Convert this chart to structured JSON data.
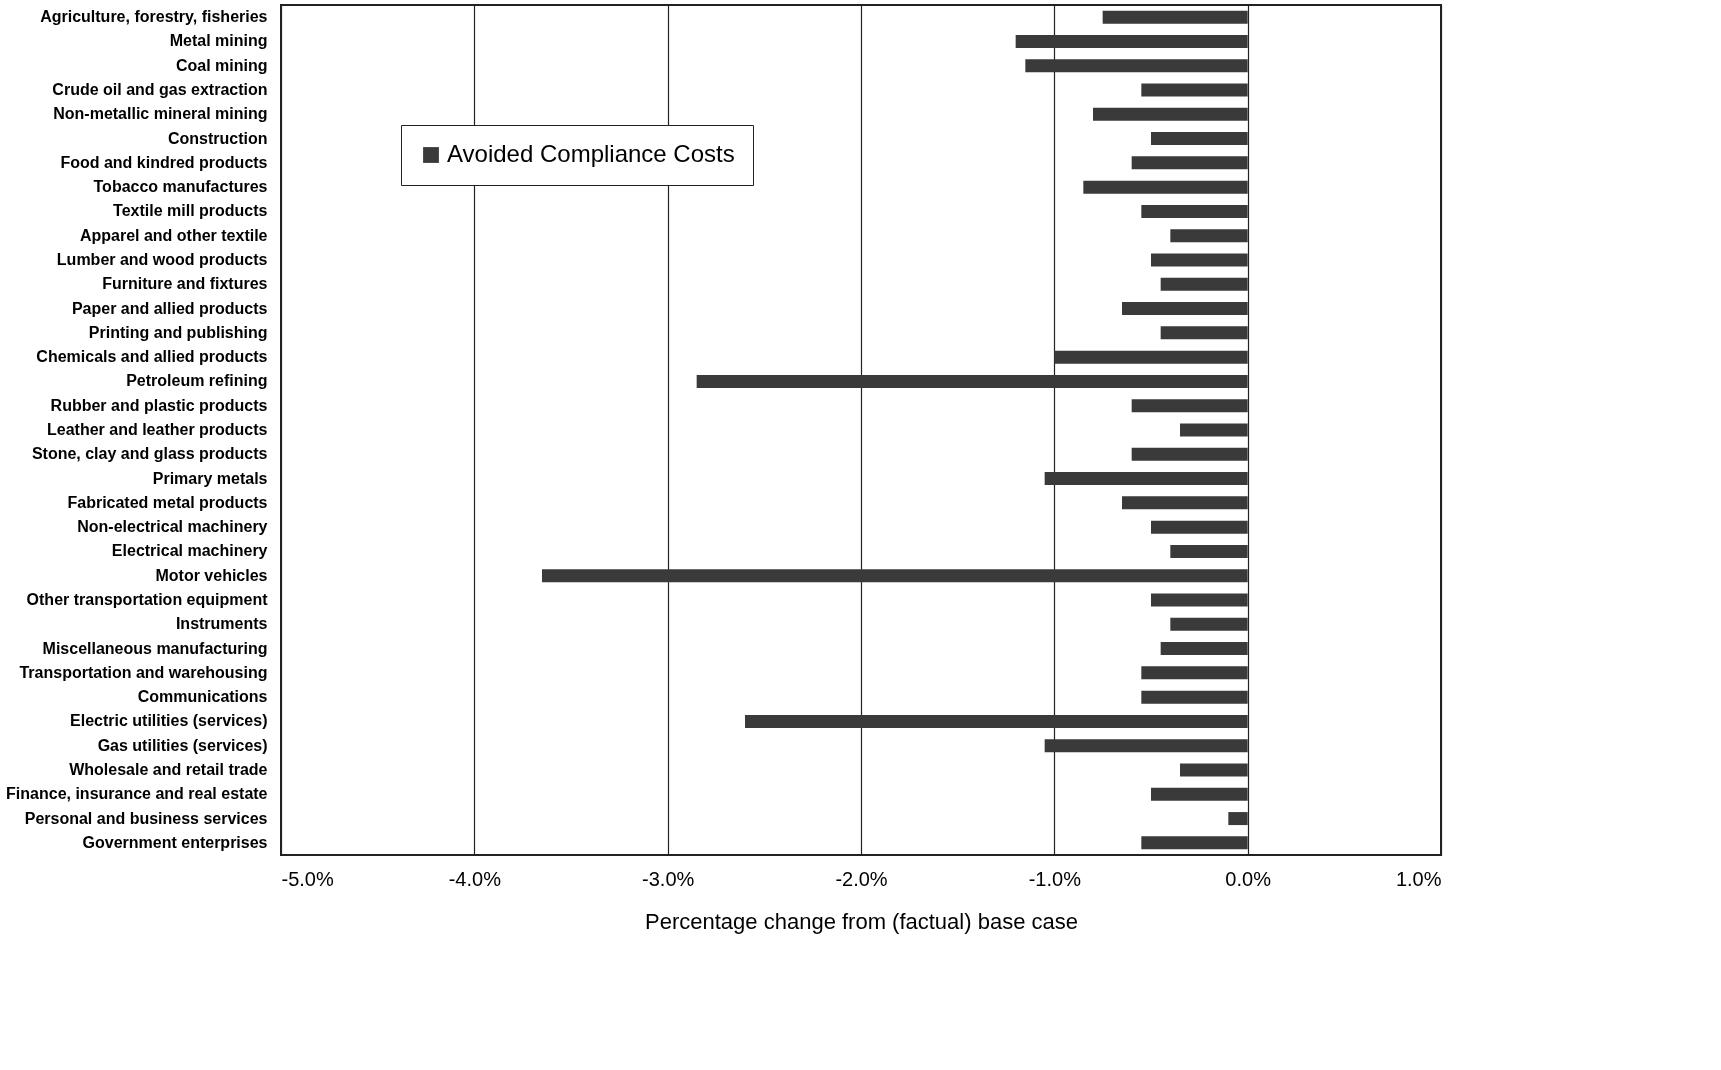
{
  "chart_data": {
    "type": "bar",
    "orientation": "horizontal",
    "xlabel": "Percentage change from (factual) base case",
    "categories": [
      "Agriculture, forestry, fisheries",
      "Metal mining",
      "Coal mining",
      "Crude oil and gas extraction",
      "Non-metallic mineral mining",
      "Construction",
      "Food and kindred products",
      "Tobacco manufactures",
      "Textile mill products",
      "Apparel and other textile",
      "Lumber and wood products",
      "Furniture and fixtures",
      "Paper and allied products",
      "Printing and publishing",
      "Chemicals and allied products",
      "Petroleum refining",
      "Rubber and plastic products",
      "Leather and leather products",
      "Stone, clay and glass products",
      "Primary metals",
      "Fabricated metal products",
      "Non-electrical machinery",
      "Electrical machinery",
      "Motor vehicles",
      "Other transportation equipment",
      "Instruments",
      "Miscellaneous manufacturing",
      "Transportation and warehousing",
      "Communications",
      "Electric utilities (services)",
      "Gas utilities (services)",
      "Wholesale and retail trade",
      "Finance, insurance and real estate",
      "Personal and business services",
      "Government enterprises"
    ],
    "series": [
      {
        "name": "Avoided Compliance Costs",
        "color": "#3a3a3a",
        "values": [
          -0.75,
          -1.2,
          -1.15,
          -0.55,
          -0.8,
          -0.5,
          -0.6,
          -0.85,
          -0.55,
          -0.4,
          -0.5,
          -0.45,
          -0.65,
          -0.45,
          -1.0,
          -2.85,
          -0.6,
          -0.35,
          -0.6,
          -1.05,
          -0.65,
          -0.5,
          -0.4,
          -3.65,
          -0.5,
          -0.4,
          -0.45,
          -0.55,
          -0.55,
          -2.6,
          -1.05,
          -0.35,
          -0.5,
          -0.1,
          -0.55
        ]
      }
    ],
    "xlim": [
      -5,
      1
    ],
    "xticks": [
      {
        "value": -5,
        "label": "-5.0%"
      },
      {
        "value": -4,
        "label": "-4.0%"
      },
      {
        "value": -3,
        "label": "-3.0%"
      },
      {
        "value": -2,
        "label": "-2.0%"
      },
      {
        "value": -1,
        "label": "-1.0%"
      },
      {
        "value": 0,
        "label": "0.0%"
      },
      {
        "value": 1,
        "label": "1.0%"
      }
    ],
    "grid": "x",
    "legend": "top left"
  }
}
